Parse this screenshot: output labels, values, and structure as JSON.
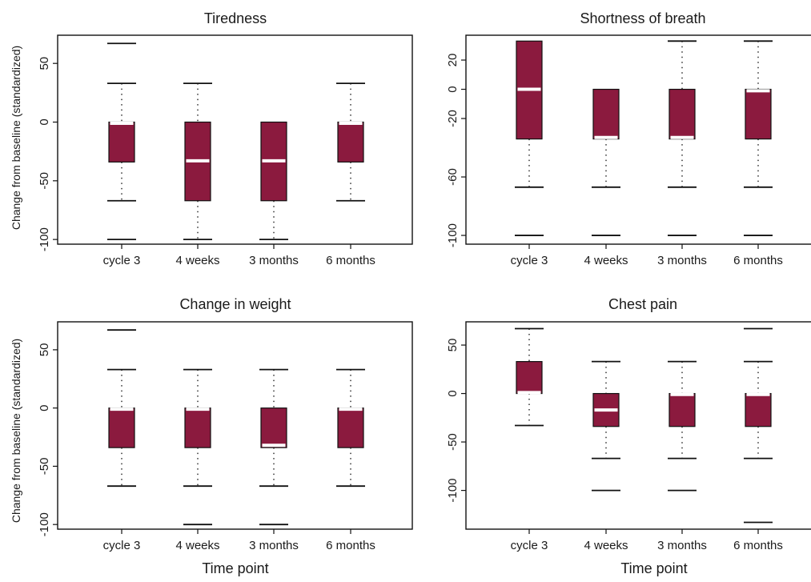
{
  "chart_data": [
    {
      "type": "boxplot",
      "title": "Tiredness",
      "ylabel": "Change from baseline (standardized)",
      "xlabel": "",
      "categories": [
        "cycle 3",
        "4 weeks",
        "3 months",
        "6 months"
      ],
      "yticks": [
        50,
        0,
        -50,
        -100
      ],
      "ylim": [
        -104,
        74
      ],
      "box_color": "#8b1a3e",
      "boxes": [
        {
          "lower_whisker": -67,
          "q1": -34,
          "median": -1,
          "q3": 0,
          "upper_whisker": 33,
          "outliers": [
            -100,
            67
          ]
        },
        {
          "lower_whisker": -100,
          "q1": -67,
          "median": -33,
          "q3": 0,
          "upper_whisker": 33,
          "outliers": []
        },
        {
          "lower_whisker": -100,
          "q1": -67,
          "median": -33,
          "q3": 0,
          "upper_whisker": 0,
          "outliers": []
        },
        {
          "lower_whisker": -67,
          "q1": -34,
          "median": -1,
          "q3": 0,
          "upper_whisker": 33,
          "outliers": []
        }
      ]
    },
    {
      "type": "boxplot",
      "title": "Shortness of breath",
      "ylabel": "",
      "xlabel": "",
      "categories": [
        "cycle 3",
        "4 weeks",
        "3 months",
        "6 months"
      ],
      "yticks": [
        20,
        0,
        -20,
        -60,
        -100
      ],
      "ylim": [
        -106,
        37
      ],
      "box_color": "#8b1a3e",
      "boxes": [
        {
          "lower_whisker": -67,
          "q1": -34,
          "median": 0,
          "q3": 33,
          "upper_whisker": 33,
          "outliers": [
            -100
          ]
        },
        {
          "lower_whisker": -67,
          "q1": -34,
          "median": -33,
          "q3": 0,
          "upper_whisker": 0,
          "outliers": [
            -100
          ]
        },
        {
          "lower_whisker": -67,
          "q1": -34,
          "median": -33,
          "q3": 0,
          "upper_whisker": 33,
          "outliers": [
            -100
          ]
        },
        {
          "lower_whisker": -67,
          "q1": -34,
          "median": -1,
          "q3": 0,
          "upper_whisker": 33,
          "outliers": [
            -100
          ]
        }
      ]
    },
    {
      "type": "boxplot",
      "title": "Change in weight",
      "ylabel": "Change from baseline (standardized)",
      "xlabel": "Time point",
      "categories": [
        "cycle 3",
        "4 weeks",
        "3 months",
        "6 months"
      ],
      "yticks": [
        50,
        0,
        -50,
        -100
      ],
      "ylim": [
        -104,
        74
      ],
      "box_color": "#8b1a3e",
      "boxes": [
        {
          "lower_whisker": -67,
          "q1": -34,
          "median": -1,
          "q3": 0,
          "upper_whisker": 33,
          "outliers": [
            67
          ]
        },
        {
          "lower_whisker": -67,
          "q1": -34,
          "median": -1,
          "q3": 0,
          "upper_whisker": 33,
          "outliers": [
            -100
          ]
        },
        {
          "lower_whisker": -67,
          "q1": -34,
          "median": -32,
          "q3": 0,
          "upper_whisker": 33,
          "outliers": [
            -100
          ]
        },
        {
          "lower_whisker": -67,
          "q1": -34,
          "median": -1,
          "q3": 0,
          "upper_whisker": 33,
          "outliers": []
        }
      ]
    },
    {
      "type": "boxplot",
      "title": "Chest pain",
      "ylabel": "",
      "xlabel": "Time point",
      "categories": [
        "cycle 3",
        "4 weeks",
        "3 months",
        "6 months"
      ],
      "yticks": [
        50,
        0,
        -50,
        -100
      ],
      "ylim": [
        -140,
        74
      ],
      "box_color": "#8b1a3e",
      "boxes": [
        {
          "lower_whisker": -33,
          "q1": 0,
          "median": 1,
          "q3": 33,
          "upper_whisker": 67,
          "outliers": []
        },
        {
          "lower_whisker": -67,
          "q1": -34,
          "median": -17,
          "q3": 0,
          "upper_whisker": 33,
          "outliers": [
            -100
          ]
        },
        {
          "lower_whisker": -67,
          "q1": -34,
          "median": -1,
          "q3": 0,
          "upper_whisker": 33,
          "outliers": [
            -100
          ]
        },
        {
          "lower_whisker": -67,
          "q1": -34,
          "median": -1,
          "q3": 0,
          "upper_whisker": 33,
          "outliers": [
            -133,
            67
          ]
        }
      ]
    }
  ]
}
